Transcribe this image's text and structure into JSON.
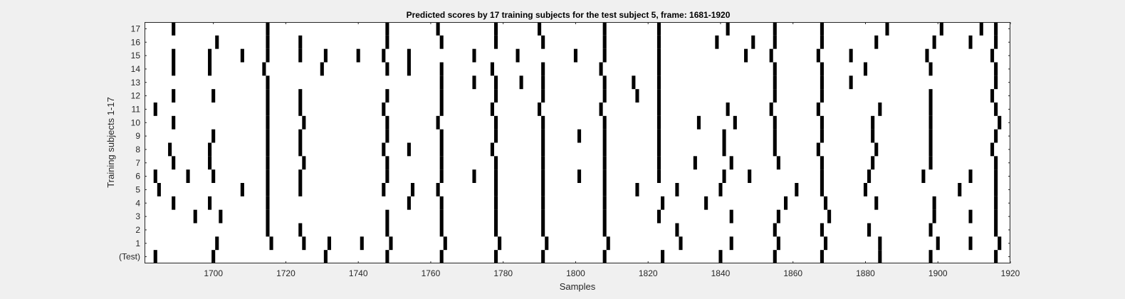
{
  "chart_data": {
    "type": "scatter",
    "title": "Predicted scores by 17 training subjects for the test subject 5, frame: 1681-1920",
    "xlabel": "Samples",
    "ylabel": "Training subjects 1-17",
    "xlim": [
      1681,
      1920
    ],
    "xticks": [
      1700,
      1720,
      1740,
      1760,
      1780,
      1800,
      1820,
      1840,
      1860,
      1880,
      1900,
      1920
    ],
    "ylim": [
      -0.5,
      17.5
    ],
    "ytick_labels": [
      "(Test)",
      "1",
      "2",
      "3",
      "4",
      "5",
      "6",
      "7",
      "8",
      "9",
      "10",
      "11",
      "12",
      "13",
      "14",
      "15",
      "16",
      "17"
    ],
    "grid": false,
    "mark_color": "#000000",
    "rows": [
      {
        "label": "(Test)",
        "x": [
          1684,
          1700,
          1731,
          1748,
          1763,
          1778,
          1791,
          1808,
          1824,
          1840,
          1855,
          1868,
          1884,
          1898,
          1916
        ]
      },
      {
        "label": "1",
        "x": [
          1701,
          1716,
          1725,
          1732,
          1741,
          1749,
          1764,
          1779,
          1792,
          1809,
          1829,
          1843,
          1856,
          1869,
          1884,
          1900,
          1909,
          1917
        ]
      },
      {
        "label": "2",
        "x": [
          1715,
          1724,
          1748,
          1763,
          1778,
          1791,
          1808,
          1828,
          1855,
          1868,
          1881,
          1898,
          1916
        ]
      },
      {
        "label": "3",
        "x": [
          1695,
          1702,
          1715,
          1748,
          1763,
          1778,
          1791,
          1808,
          1823,
          1843,
          1856,
          1870,
          1899,
          1909,
          1916
        ]
      },
      {
        "label": "4",
        "x": [
          1689,
          1699,
          1715,
          1754,
          1763,
          1778,
          1791,
          1808,
          1824,
          1836,
          1858,
          1869,
          1883,
          1899,
          1916
        ]
      },
      {
        "label": "5",
        "x": [
          1685,
          1708,
          1715,
          1724,
          1747,
          1755,
          1762,
          1778,
          1791,
          1808,
          1817,
          1828,
          1840,
          1861,
          1868,
          1880,
          1906,
          1916
        ]
      },
      {
        "label": "6",
        "x": [
          1684,
          1693,
          1700,
          1715,
          1724,
          1748,
          1763,
          1772,
          1778,
          1791,
          1801,
          1808,
          1823,
          1841,
          1848,
          1868,
          1881,
          1896,
          1909,
          1916
        ]
      },
      {
        "label": "7",
        "x": [
          1689,
          1699,
          1715,
          1725,
          1748,
          1763,
          1778,
          1791,
          1808,
          1823,
          1833,
          1843,
          1856,
          1868,
          1882,
          1898,
          1916
        ]
      },
      {
        "label": "8",
        "x": [
          1688,
          1699,
          1715,
          1724,
          1747,
          1754,
          1763,
          1777,
          1791,
          1808,
          1823,
          1841,
          1855,
          1867,
          1883,
          1898,
          1915
        ]
      },
      {
        "label": "9",
        "x": [
          1700,
          1715,
          1724,
          1748,
          1763,
          1778,
          1791,
          1801,
          1808,
          1823,
          1841,
          1855,
          1868,
          1882,
          1898,
          1916
        ]
      },
      {
        "label": "10",
        "x": [
          1689,
          1715,
          1725,
          1748,
          1762,
          1778,
          1791,
          1808,
          1823,
          1834,
          1844,
          1855,
          1868,
          1882,
          1898,
          1917
        ]
      },
      {
        "label": "11",
        "x": [
          1684,
          1715,
          1724,
          1747,
          1763,
          1777,
          1790,
          1807,
          1823,
          1842,
          1854,
          1867,
          1884,
          1898,
          1916
        ]
      },
      {
        "label": "12",
        "x": [
          1689,
          1700,
          1715,
          1724,
          1748,
          1763,
          1778,
          1791,
          1808,
          1817,
          1823,
          1855,
          1868,
          1898,
          1915
        ]
      },
      {
        "label": "13",
        "x": [
          1715,
          1763,
          1772,
          1778,
          1785,
          1791,
          1808,
          1816,
          1823,
          1855,
          1868,
          1876,
          1916
        ]
      },
      {
        "label": "14",
        "x": [
          1689,
          1699,
          1714,
          1730,
          1748,
          1754,
          1763,
          1777,
          1791,
          1807,
          1823,
          1855,
          1868,
          1880,
          1898,
          1916
        ]
      },
      {
        "label": "15",
        "x": [
          1689,
          1699,
          1708,
          1715,
          1724,
          1731,
          1740,
          1747,
          1754,
          1772,
          1784,
          1800,
          1808,
          1823,
          1847,
          1854,
          1867,
          1876,
          1897,
          1915
        ]
      },
      {
        "label": "16",
        "x": [
          1701,
          1715,
          1724,
          1748,
          1763,
          1778,
          1791,
          1808,
          1823,
          1839,
          1849,
          1855,
          1868,
          1883,
          1899,
          1909,
          1916
        ]
      },
      {
        "label": "17",
        "x": [
          1689,
          1715,
          1748,
          1762,
          1778,
          1790,
          1808,
          1823,
          1842,
          1855,
          1868,
          1886,
          1901,
          1912,
          1916
        ]
      }
    ]
  }
}
